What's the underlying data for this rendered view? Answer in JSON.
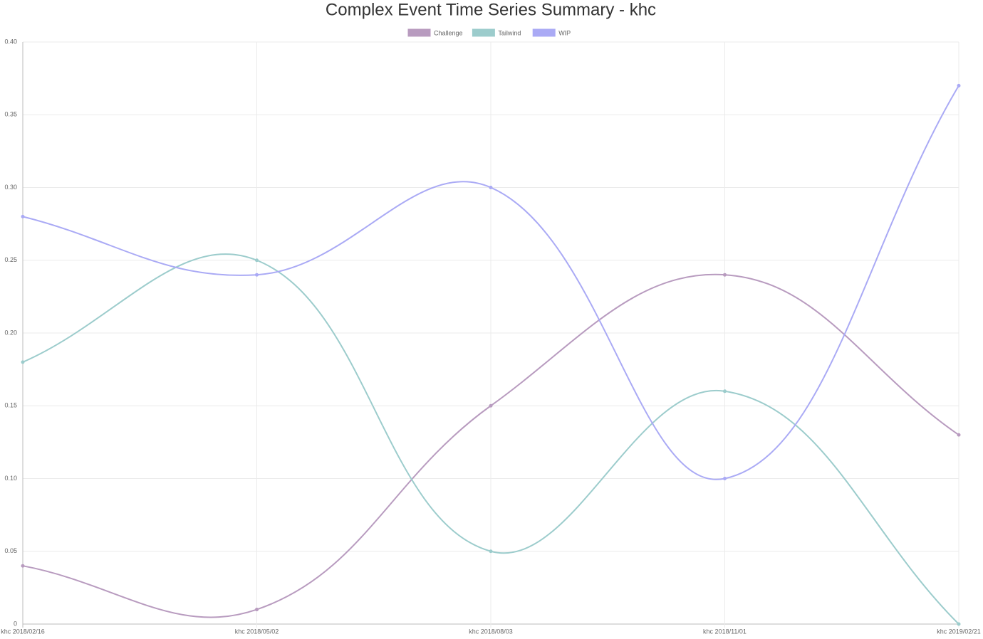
{
  "chart_data": {
    "type": "line",
    "title": "Complex Event Time Series Summary - khc",
    "categories": [
      "khc 2018/02/16",
      "khc 2018/05/02",
      "khc 2018/08/03",
      "khc 2018/11/01",
      "khc 2019/02/21"
    ],
    "series": [
      {
        "name": "Challenge",
        "color": "#b89bbf",
        "values": [
          0.04,
          0.01,
          0.15,
          0.24,
          0.13
        ]
      },
      {
        "name": "Tailwind",
        "color": "#9ccccc",
        "values": [
          0.18,
          0.25,
          0.05,
          0.16,
          0
        ]
      },
      {
        "name": "WIP",
        "color": "#aaaaf5",
        "values": [
          0.28,
          0.24,
          0.3,
          0.1,
          0.37
        ]
      }
    ],
    "ylim": [
      0,
      0.4
    ],
    "yticks": [
      0,
      0.05,
      {
        "value": 0.1,
        "label": "0.10"
      },
      0.15,
      {
        "value": 0.2,
        "label": "0.20"
      },
      0.25,
      {
        "value": 0.3,
        "label": "0.30"
      },
      0.35,
      {
        "value": 0.4,
        "label": "0.40"
      }
    ],
    "grid": true,
    "legend": "top"
  }
}
